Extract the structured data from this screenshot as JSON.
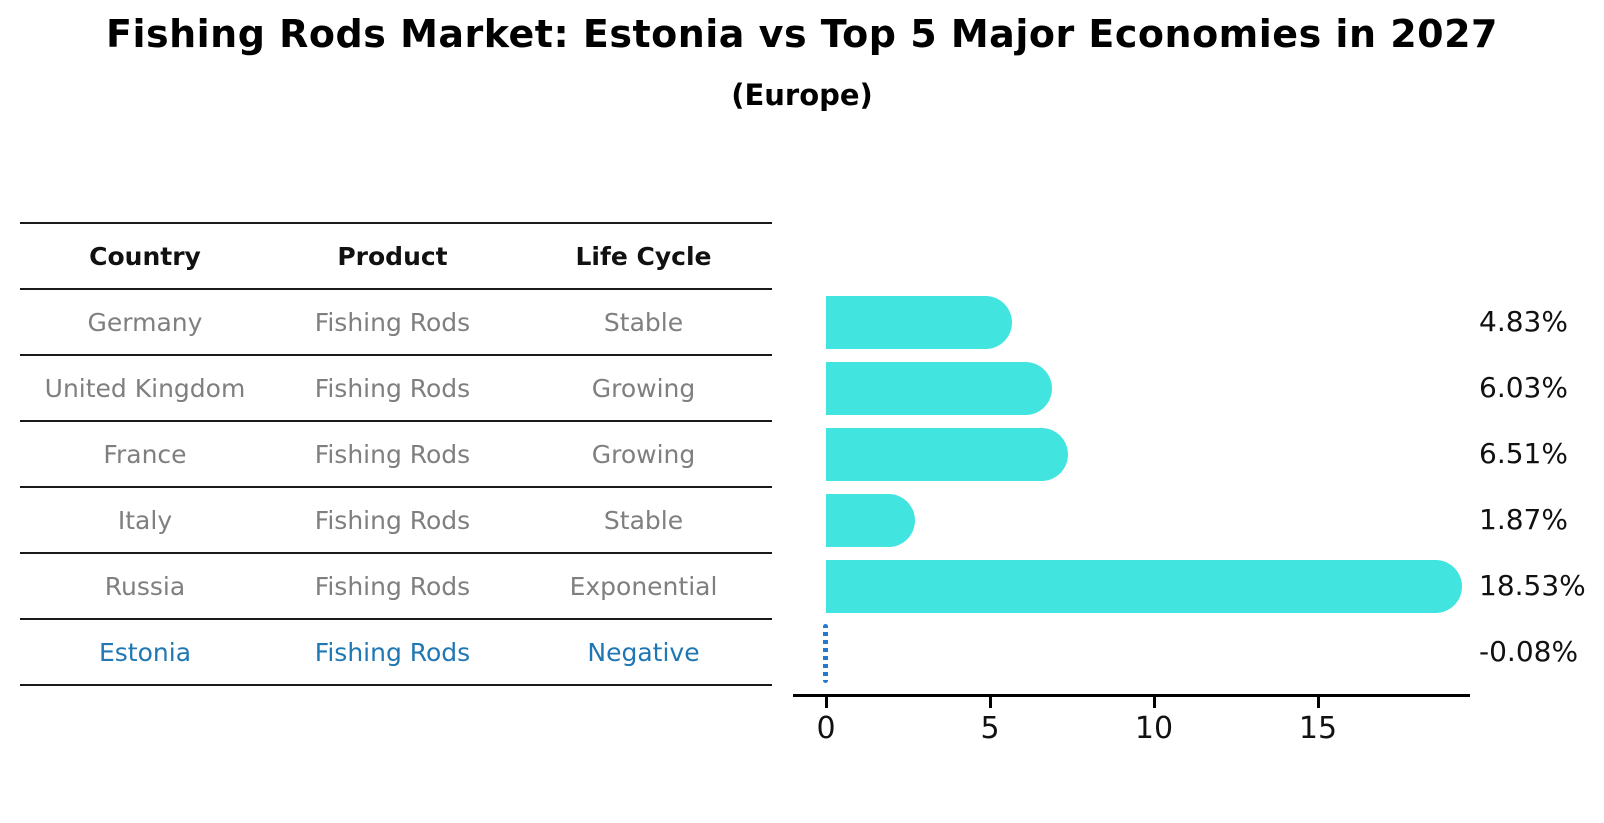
{
  "header": {
    "title": "Fishing Rods Market: Estonia vs Top 5 Major Economies in 2027",
    "subtitle": "(Europe)"
  },
  "table": {
    "columns": [
      "Country",
      "Product",
      "Life Cycle"
    ],
    "rows": [
      {
        "country": "Germany",
        "product": "Fishing Rods",
        "life_cycle": "Stable"
      },
      {
        "country": "United Kingdom",
        "product": "Fishing Rods",
        "life_cycle": "Growing"
      },
      {
        "country": "France",
        "product": "Fishing Rods",
        "life_cycle": "Growing"
      },
      {
        "country": "Italy",
        "product": "Fishing Rods",
        "life_cycle": "Stable"
      },
      {
        "country": "Russia",
        "product": "Fishing Rods",
        "life_cycle": "Exponential"
      },
      {
        "country": "Estonia",
        "product": "Fishing Rods",
        "life_cycle": "Negative",
        "highlight": true
      }
    ]
  },
  "chart_data": {
    "type": "bar",
    "orientation": "horizontal",
    "title": "Fishing Rods Market: Estonia vs Top 5 Major Economies in 2027",
    "subtitle": "(Europe)",
    "categories": [
      "Germany",
      "United Kingdom",
      "France",
      "Italy",
      "Russia",
      "Estonia"
    ],
    "values": [
      4.83,
      6.03,
      6.51,
      1.87,
      18.53,
      -0.08
    ],
    "value_labels": [
      "4.83%",
      "6.03%",
      "6.51%",
      "1.87%",
      "18.53%",
      "-0.08%"
    ],
    "x_ticks": [
      0,
      5,
      10,
      15
    ],
    "xlim": [
      -0.93,
      19.6
    ],
    "grid": false,
    "legend": false,
    "highlight_index": 5,
    "bar_color": "#42E4DF",
    "highlight_marker_color": "#2579CF"
  },
  "colors": {
    "bar": "#42E4DF",
    "highlight_text": "#1F77B4",
    "cell_text": "#7F7F7F",
    "header_text": "#111111",
    "axis": "#000000"
  }
}
